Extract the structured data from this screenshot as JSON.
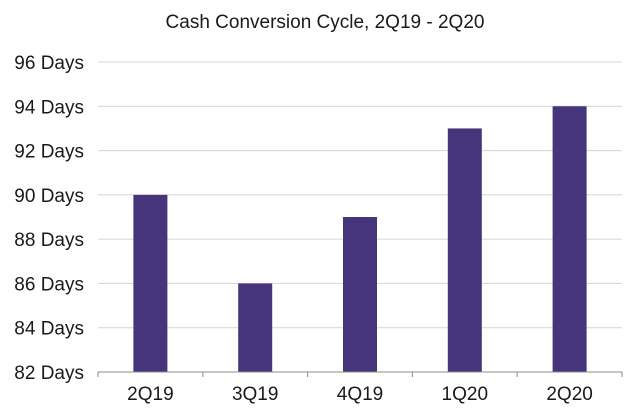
{
  "chart_data": {
    "type": "bar",
    "title": "Cash Conversion Cycle, 2Q19 - 2Q20",
    "xlabel": "",
    "ylabel": "",
    "categories": [
      "2Q19",
      "3Q19",
      "4Q19",
      "1Q20",
      "2Q20"
    ],
    "values": [
      90,
      86,
      89,
      93,
      94
    ],
    "ylim": [
      82,
      96
    ],
    "yticks": [
      82,
      84,
      86,
      88,
      90,
      92,
      94,
      96
    ],
    "ytick_labels": [
      "82 Days",
      "84 Days",
      "86 Days",
      "88 Days",
      "90 Days",
      "92 Days",
      "94 Days",
      "96 Days"
    ],
    "grid": true,
    "legend": "none",
    "bar_color": "#46357a",
    "grid_color": "#d4d4d4",
    "axis_color": "#8c8c8c"
  }
}
